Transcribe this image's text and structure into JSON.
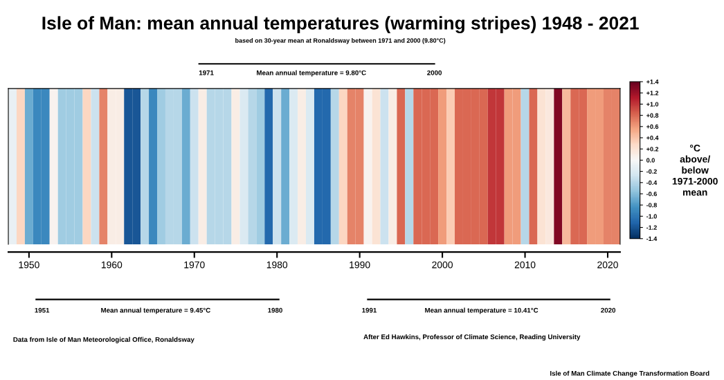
{
  "chart_data": {
    "type": "heatmap",
    "title": "Isle of Man: mean annual temperatures (warming stripes) 1948 - 2021",
    "subtitle": "based on 30-year mean at Ronaldsway between 1971 and 2000 (9.80°C)",
    "categories": [
      null,
      null,
      "1950",
      null,
      null,
      null,
      null,
      null,
      null,
      null,
      null,
      null,
      "1960",
      null,
      null,
      null,
      null,
      null,
      null,
      null,
      null,
      null,
      "1970",
      null,
      null,
      null,
      null,
      null,
      null,
      null,
      null,
      null,
      "1980",
      null,
      null,
      null,
      null,
      null,
      null,
      null,
      null,
      null,
      "1990",
      null,
      null,
      null,
      null,
      null,
      null,
      null,
      null,
      null,
      "2000",
      null,
      null,
      null,
      null,
      null,
      null,
      null,
      null,
      null,
      "2010",
      null,
      null,
      null,
      null,
      null,
      null,
      null,
      null,
      null,
      "2020",
      null
    ],
    "y_categories": [
      null
    ],
    "cells": [
      [
        -0.1,
        0.3,
        -0.7,
        -0.9,
        -0.9,
        0.05,
        -0.5,
        -0.5,
        -0.5,
        0.3,
        -0.3,
        0.7,
        0.1,
        0.1,
        -1.2,
        -1.2,
        -0.4,
        -0.9,
        -0.5,
        -0.4,
        -0.4,
        -0.7,
        -0.3,
        0.1,
        -0.4,
        -0.4,
        -0.4,
        0.1,
        -0.2,
        -0.4,
        -0.5,
        -1.1,
        -0.3,
        -0.7,
        -0.2,
        0.1,
        -0.2,
        -1.1,
        -1.1,
        -0.4,
        0.3,
        0.7,
        0.7,
        0.05,
        0.2,
        -0.3,
        0.1,
        0.8,
        -0.4,
        0.8,
        0.8,
        0.8,
        0.6,
        0.35,
        0.8,
        0.8,
        0.8,
        0.8,
        1.0,
        1.0,
        0.6,
        0.6,
        -0.4,
        0.8,
        0.2,
        0.15,
        1.3,
        0.45,
        0.8,
        0.8,
        0.6,
        0.6,
        0.7,
        0.7
      ]
    ],
    "clim": [
      -1.4,
      1.4
    ],
    "cticks": [
      {
        "value": 1.4,
        "label": "+1.4"
      },
      {
        "value": 1.2,
        "label": "+1.2"
      },
      {
        "value": 1.0,
        "label": "+1.0"
      },
      {
        "value": 0.8,
        "label": "+0.8"
      },
      {
        "value": 0.6,
        "label": "+0.6"
      },
      {
        "value": 0.4,
        "label": "+0.4"
      },
      {
        "value": 0.2,
        "label": "+0.2"
      },
      {
        "value": 0.0,
        "label": "0.0"
      },
      {
        "value": -0.2,
        "label": "-0.2"
      },
      {
        "value": -0.4,
        "label": "-0.4"
      },
      {
        "value": -0.6,
        "label": "-0.6"
      },
      {
        "value": -0.8,
        "label": "-0.8"
      },
      {
        "value": -1.0,
        "label": "-1.0"
      },
      {
        "value": -1.2,
        "label": "-1.2"
      },
      {
        "value": -1.4,
        "label": "-1.4"
      }
    ],
    "clabel": "°C\nabove/\nbelow\n1971-2000\nmean",
    "annotations": [
      "1971",
      "Mean annual temperature = 9.80°C",
      "2000",
      "1951",
      "Mean annual temperature = 9.45°C",
      "1980",
      "1991",
      "Mean annual temperature = 10.41°C",
      "2020",
      "Data from Isle of Man Meteorological Office, Ronaldsway",
      "After Ed Hawkins, Professor of Climate Science, Reading University",
      "Isle of Man Climate Change Transformation Board"
    ]
  }
}
